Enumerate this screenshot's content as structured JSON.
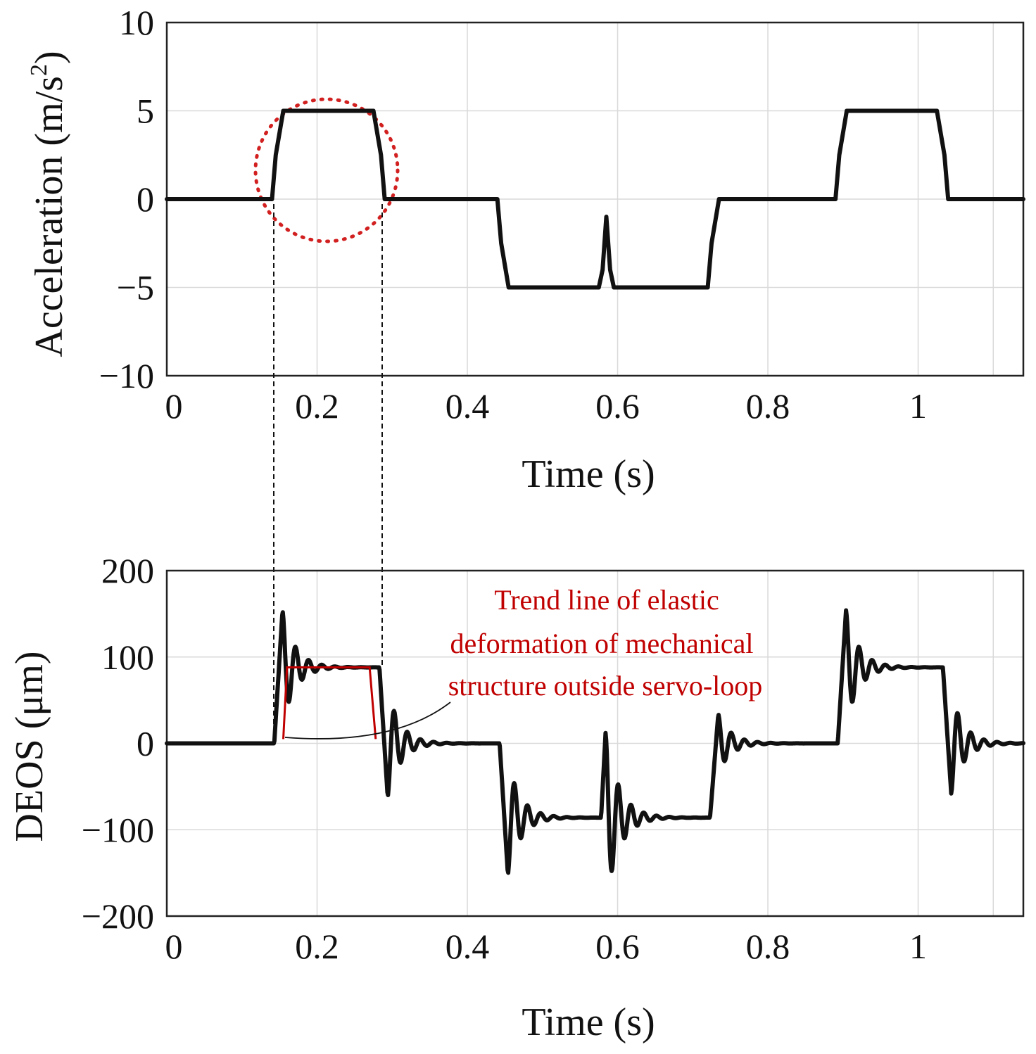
{
  "chart_data": [
    {
      "type": "line",
      "xlabel": "Time (s)",
      "ylabel_main": "Acceleration (m/s",
      "ylabel_sup": "2",
      "ylabel_end": ")",
      "xlim": [
        0,
        1.14
      ],
      "ylim": [
        -10,
        10
      ],
      "xticks": [
        0,
        0.2,
        0.4,
        0.6,
        0.8,
        1
      ],
      "xtick_labels": [
        "0",
        "0.2",
        "0.4",
        "0.6",
        "0.8",
        "1"
      ],
      "yticks": [
        -10,
        -5,
        0,
        5,
        10
      ],
      "ytick_labels": [
        "−10",
        "−5",
        "0",
        "5",
        "10"
      ],
      "grid": true,
      "series": [
        {
          "name": "acceleration",
          "x": [
            0,
            0.14,
            0.145,
            0.155,
            0.275,
            0.285,
            0.29,
            0.44,
            0.445,
            0.455,
            0.575,
            0.58,
            0.585,
            0.59,
            0.595,
            0.6,
            0.72,
            0.725,
            0.735,
            0.89,
            0.895,
            0.905,
            1.025,
            1.035,
            1.04,
            1.14
          ],
          "y": [
            0,
            0,
            2.5,
            5,
            5,
            2.5,
            0,
            0,
            -2.5,
            -5,
            -5,
            -4,
            -1,
            -4,
            -5,
            -5,
            -5,
            -2.5,
            0,
            0,
            2.5,
            5,
            5,
            2.5,
            0,
            0
          ]
        }
      ]
    },
    {
      "type": "line",
      "xlabel": "Time (s)",
      "ylabel": "DEOS (μm)",
      "xlim": [
        0,
        1.14
      ],
      "ylim": [
        -200,
        200
      ],
      "xticks": [
        0,
        0.2,
        0.4,
        0.6,
        0.8,
        1
      ],
      "xtick_labels": [
        "0",
        "0.2",
        "0.4",
        "0.6",
        "0.8",
        "1"
      ],
      "yticks": [
        -200,
        -100,
        0,
        100,
        200
      ],
      "ytick_labels": [
        "−200",
        "−100",
        "0",
        "100",
        "200"
      ],
      "grid": true,
      "series": [
        {
          "name": "DEOS",
          "model": "step response with damped oscillation",
          "base": 0,
          "steps": [
            {
              "t0": 0.143,
              "rise": 0.011,
              "delta": 88,
              "overshoot": 66,
              "period": 0.0175,
              "decay": 0.017
            },
            {
              "t0": 0.283,
              "rise": 0.011,
              "delta": -88,
              "overshoot": -62,
              "period": 0.0175,
              "decay": 0.017
            },
            {
              "t0": 0.443,
              "rise": 0.011,
              "delta": -86,
              "overshoot": -66,
              "period": 0.0175,
              "decay": 0.017
            },
            {
              "t0": 0.578,
              "rise": 0.006,
              "delta": 0,
              "overshoot": 98,
              "period": 0.017,
              "decay": 0.018,
              "impulse": true
            },
            {
              "t0": 0.723,
              "rise": 0.011,
              "delta": 86,
              "overshoot": 34,
              "period": 0.0175,
              "decay": 0.017
            },
            {
              "t0": 0.893,
              "rise": 0.011,
              "delta": 88,
              "overshoot": 66,
              "period": 0.0175,
              "decay": 0.017
            },
            {
              "t0": 1.033,
              "rise": 0.011,
              "delta": -88,
              "overshoot": -58,
              "period": 0.0175,
              "decay": 0.017
            }
          ]
        },
        {
          "name": "trend line",
          "color": "#c00000",
          "x": [
            0.155,
            0.16,
            0.27,
            0.278
          ],
          "y": [
            5,
            88,
            88,
            5
          ]
        }
      ],
      "annotation": {
        "lines": [
          "Trend line of elastic",
          "deformation of mechanical",
          "structure outside servo-loop"
        ],
        "color": "#c00000"
      }
    }
  ]
}
